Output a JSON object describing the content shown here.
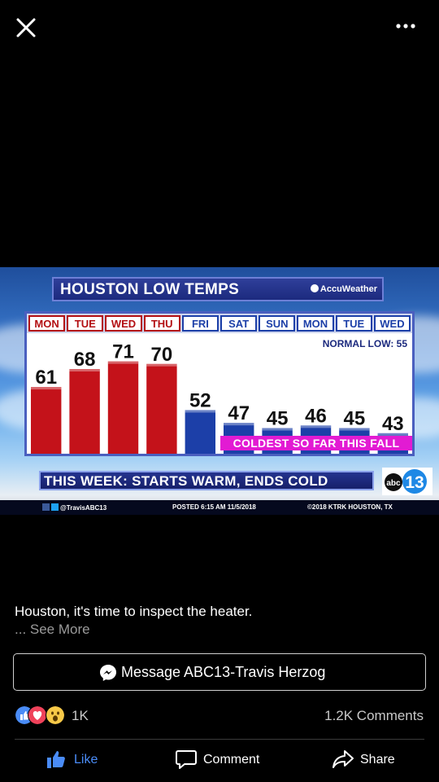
{
  "header": {
    "close_icon": "close-icon",
    "more_icon": "more-horizontal-icon"
  },
  "photo": {
    "title": "HOUSTON LOW TEMPS",
    "brand": "AccuWeather",
    "normal_low": "NORMAL LOW:  55",
    "coldest_banner": "COLDEST SO FAR THIS FALL",
    "lower_third": "THIS WEEK: STARTS WARM, ENDS COLD",
    "logo_text": "abc",
    "logo_number": "13",
    "ticker_handle": "@TravisABC13",
    "ticker_posted": "POSTED  6:15 AM   11/5/2018",
    "ticker_copyright": "©2018 KTRK  HOUSTON, TX",
    "colors": {
      "warm": "#c4121a",
      "cold": "#1c3fa8",
      "banner": "#e21bd3"
    }
  },
  "chart_data": {
    "type": "bar",
    "categories": [
      "MON",
      "TUE",
      "WED",
      "THU",
      "FRI",
      "SAT",
      "SUN",
      "MON",
      "TUE",
      "WED"
    ],
    "values": [
      61,
      68,
      71,
      70,
      52,
      47,
      45,
      46,
      45,
      43
    ],
    "value_labels": [
      "61",
      "68",
      "71",
      "70",
      "52",
      "47",
      "45",
      "46",
      "45",
      "43"
    ],
    "title": "HOUSTON LOW TEMPS",
    "normal_low": 55,
    "bar_colors": [
      "#c4121a",
      "#c4121a",
      "#c4121a",
      "#c4121a",
      "#1c3fa8",
      "#1c3fa8",
      "#1c3fa8",
      "#1c3fa8",
      "#1c3fa8",
      "#1c3fa8"
    ]
  },
  "post": {
    "caption": "Houston, it's time to inspect the heater.",
    "see_more": "... See More",
    "message_button": "Message ABC13-Travis Herzog",
    "reaction_count": "1K",
    "comments_count": "1.2K Comments"
  },
  "actions": {
    "like": "Like",
    "comment": "Comment",
    "share": "Share"
  }
}
